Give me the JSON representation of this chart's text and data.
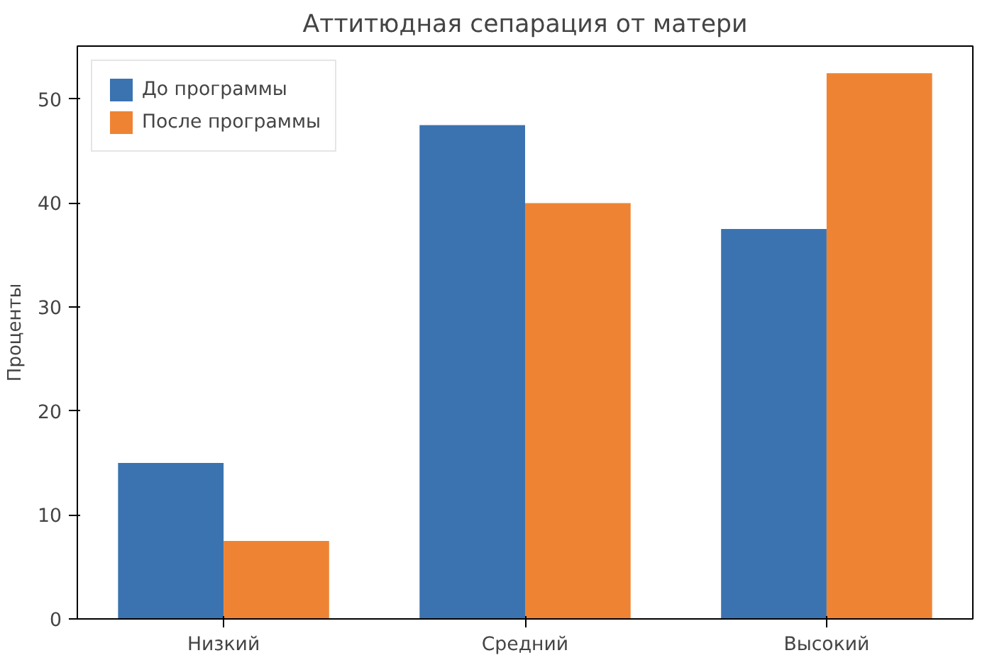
{
  "chart_data": {
    "type": "bar",
    "title": "Аттитюдная сепарация от матери",
    "ylabel": "Проценты",
    "categories": [
      "Низкий",
      "Средний",
      "Высокий"
    ],
    "series": [
      {
        "name": "До программы",
        "color": "#3a73b0",
        "values": [
          15,
          47.5,
          37.5
        ]
      },
      {
        "name": "После программы",
        "color": "#ee8433",
        "values": [
          7.5,
          40,
          52.5
        ]
      }
    ],
    "ylim": [
      0,
      55.1
    ],
    "yticks": [
      0,
      10,
      20,
      30,
      40,
      50
    ],
    "grid": false,
    "legend": "top left"
  }
}
